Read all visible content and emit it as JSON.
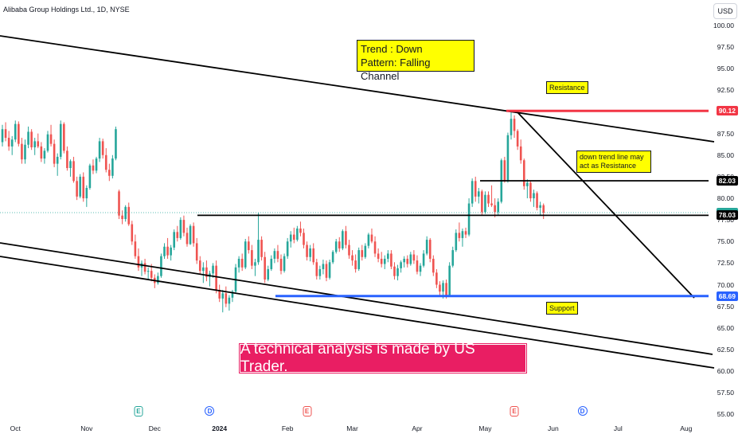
{
  "header": {
    "symbol_title": "Alibaba Group Holdings Ltd., 1D, NYSE",
    "currency": "USD"
  },
  "annotations": {
    "trend_line1": "Trend :  Down",
    "trend_line2": "Pattern: Falling Channel",
    "resistance": "Resistance",
    "support": "Support",
    "downtrend_note": "down trend line may act as Resistance",
    "banner": "A  technical analysis is made by US Trader."
  },
  "colors": {
    "up": "#26a69a",
    "down": "#ef5350",
    "resistance_line": "#f23645",
    "support_line": "#2962ff",
    "banner": "#e91e63",
    "note_bg": "#ffff00"
  },
  "chart_data": {
    "type": "candlestick",
    "y_axis": {
      "ticks": [
        "100.00",
        "97.50",
        "95.00",
        "92.50",
        "90.00",
        "87.50",
        "85.00",
        "82.50",
        "80.00",
        "77.50",
        "75.00",
        "72.50",
        "70.00",
        "67.50",
        "65.00",
        "62.50",
        "60.00",
        "57.50",
        "55.00"
      ],
      "range": [
        55,
        100
      ]
    },
    "x_axis": {
      "ticks": [
        {
          "label": "Oct",
          "bold": false,
          "index": 4
        },
        {
          "label": "Nov",
          "bold": false,
          "index": 26
        },
        {
          "label": "Dec",
          "bold": false,
          "index": 47
        },
        {
          "label": "2024",
          "bold": true,
          "index": 67
        },
        {
          "label": "Feb",
          "bold": false,
          "index": 88
        },
        {
          "label": "Mar",
          "bold": false,
          "index": 108
        },
        {
          "label": "Apr",
          "bold": false,
          "index": 128
        },
        {
          "label": "May",
          "bold": false,
          "index": 149
        },
        {
          "label": "Jun",
          "bold": false,
          "index": 170
        },
        {
          "label": "Jul",
          "bold": false,
          "index": 190
        },
        {
          "label": "Aug",
          "bold": false,
          "index": 211
        }
      ]
    },
    "price_labels": [
      {
        "value": 90.12,
        "text": "90.12",
        "color": "#f23645"
      },
      {
        "value": 82.03,
        "text": "82.03",
        "color": "#000000"
      },
      {
        "value": 78.34,
        "text": "78.34",
        "color": "#26a69a"
      },
      {
        "value": 78.03,
        "text": "78.03",
        "color": "#000000"
      },
      {
        "value": 68.69,
        "text": "68.69",
        "color": "#2962ff"
      }
    ],
    "levels": {
      "resistance": 90.12,
      "horizontal_1": 82.03,
      "horizontal_2": 78.03,
      "support": 68.69,
      "last": 78.34
    },
    "events": [
      {
        "type": "E",
        "index": 42,
        "color": "up"
      },
      {
        "type": "D",
        "index": 64,
        "color": "blue"
      },
      {
        "type": "E",
        "index": 94,
        "color": "down"
      },
      {
        "type": "E",
        "index": 158,
        "color": "down"
      },
      {
        "type": "D",
        "index": 179,
        "color": "blue"
      }
    ],
    "candles": [
      [
        86.5,
        88.5,
        86.0,
        88.0
      ],
      [
        88.0,
        88.8,
        86.6,
        87.0
      ],
      [
        87.0,
        87.8,
        85.5,
        86.0
      ],
      [
        86.0,
        87.2,
        85.0,
        86.8
      ],
      [
        86.8,
        89.0,
        86.5,
        88.6
      ],
      [
        88.6,
        88.9,
        86.0,
        86.3
      ],
      [
        86.3,
        87.0,
        84.0,
        84.5
      ],
      [
        84.5,
        86.8,
        84.0,
        86.2
      ],
      [
        86.2,
        88.3,
        85.8,
        87.7
      ],
      [
        87.7,
        88.0,
        85.6,
        85.9
      ],
      [
        85.9,
        87.0,
        85.0,
        86.6
      ],
      [
        86.6,
        87.5,
        85.8,
        86.0
      ],
      [
        86.0,
        86.5,
        84.2,
        84.6
      ],
      [
        84.6,
        85.8,
        84.0,
        85.5
      ],
      [
        85.5,
        87.8,
        85.3,
        87.4
      ],
      [
        87.4,
        88.5,
        86.0,
        86.3
      ],
      [
        86.3,
        86.8,
        83.6,
        84.0
      ],
      [
        84.0,
        85.2,
        82.6,
        84.8
      ],
      [
        84.8,
        89.0,
        84.5,
        88.6
      ],
      [
        88.6,
        88.8,
        85.2,
        85.5
      ],
      [
        85.5,
        86.0,
        83.2,
        83.5
      ],
      [
        83.5,
        84.5,
        82.5,
        84.3
      ],
      [
        84.3,
        84.8,
        81.8,
        82.0
      ],
      [
        82.0,
        82.5,
        79.8,
        80.2
      ],
      [
        80.2,
        82.8,
        80.0,
        82.5
      ],
      [
        82.5,
        83.0,
        79.6,
        80.0
      ],
      [
        80.0,
        81.5,
        79.0,
        81.2
      ],
      [
        81.2,
        84.0,
        81.0,
        83.8
      ],
      [
        83.8,
        84.5,
        82.8,
        83.2
      ],
      [
        83.2,
        84.8,
        82.9,
        84.6
      ],
      [
        84.6,
        87.0,
        84.2,
        86.6
      ],
      [
        86.6,
        86.9,
        84.6,
        85.0
      ],
      [
        85.0,
        85.8,
        83.0,
        83.3
      ],
      [
        83.3,
        84.0,
        82.0,
        82.6
      ],
      [
        82.6,
        85.0,
        82.3,
        84.6
      ],
      [
        84.6,
        88.3,
        84.4,
        88.0
      ],
      [
        80.8,
        81.0,
        77.6,
        78.0
      ],
      [
        78.0,
        78.6,
        77.0,
        77.6
      ],
      [
        77.6,
        79.2,
        77.3,
        79.0
      ],
      [
        79.0,
        79.5,
        76.8,
        77.0
      ],
      [
        77.0,
        77.4,
        74.6,
        75.0
      ],
      [
        75.0,
        75.8,
        73.0,
        73.3
      ],
      [
        73.3,
        74.2,
        71.6,
        72.0
      ],
      [
        72.0,
        72.8,
        71.0,
        72.5
      ],
      [
        72.5,
        73.0,
        71.2,
        71.5
      ],
      [
        71.5,
        72.0,
        70.6,
        71.6
      ],
      [
        71.6,
        72.4,
        70.4,
        70.8
      ],
      [
        70.8,
        71.2,
        69.6,
        70.2
      ],
      [
        70.2,
        71.4,
        70.0,
        71.0
      ],
      [
        71.0,
        73.6,
        70.8,
        73.3
      ],
      [
        73.3,
        74.8,
        73.0,
        74.4
      ],
      [
        74.4,
        75.4,
        73.0,
        73.4
      ],
      [
        73.4,
        74.6,
        72.8,
        74.3
      ],
      [
        74.3,
        76.4,
        74.0,
        76.1
      ],
      [
        76.1,
        76.8,
        75.0,
        75.4
      ],
      [
        75.4,
        77.8,
        75.2,
        77.5
      ],
      [
        77.5,
        78.0,
        75.6,
        76.0
      ],
      [
        76.0,
        76.6,
        74.4,
        74.7
      ],
      [
        74.7,
        77.0,
        74.6,
        76.8
      ],
      [
        76.8,
        77.2,
        74.4,
        74.8
      ],
      [
        74.8,
        75.4,
        72.4,
        72.8
      ],
      [
        72.8,
        73.3,
        71.2,
        71.6
      ],
      [
        71.6,
        72.6,
        70.2,
        72.0
      ],
      [
        72.0,
        72.8,
        70.4,
        70.9
      ],
      [
        70.9,
        71.6,
        69.8,
        71.3
      ],
      [
        71.3,
        72.5,
        70.8,
        72.2
      ],
      [
        72.2,
        72.8,
        69.0,
        69.4
      ],
      [
        69.4,
        70.0,
        68.0,
        68.4
      ],
      [
        68.4,
        69.4,
        66.8,
        69.0
      ],
      [
        69.0,
        69.8,
        67.4,
        67.8
      ],
      [
        67.8,
        68.8,
        67.0,
        68.5
      ],
      [
        68.5,
        69.4,
        68.0,
        69.2
      ],
      [
        69.2,
        72.4,
        69.0,
        72.0
      ],
      [
        72.0,
        73.3,
        71.4,
        73.0
      ],
      [
        73.0,
        73.6,
        71.6,
        72.0
      ],
      [
        72.0,
        75.3,
        71.8,
        75.0
      ],
      [
        75.0,
        75.6,
        73.6,
        74.0
      ],
      [
        74.0,
        74.6,
        71.8,
        72.2
      ],
      [
        72.2,
        73.0,
        71.0,
        72.6
      ],
      [
        72.6,
        78.3,
        72.3,
        75.2
      ],
      [
        75.2,
        75.6,
        72.8,
        73.2
      ],
      [
        73.2,
        73.8,
        70.2,
        70.6
      ],
      [
        70.6,
        72.2,
        70.4,
        71.8
      ],
      [
        71.8,
        73.4,
        71.6,
        73.0
      ],
      [
        73.0,
        74.2,
        72.5,
        73.9
      ],
      [
        73.9,
        74.6,
        72.6,
        73.0
      ],
      [
        73.0,
        73.5,
        71.2,
        71.6
      ],
      [
        71.6,
        73.6,
        71.4,
        73.3
      ],
      [
        73.3,
        75.4,
        73.0,
        75.0
      ],
      [
        75.0,
        76.2,
        74.3,
        75.8
      ],
      [
        75.8,
        76.6,
        74.8,
        75.2
      ],
      [
        75.2,
        76.8,
        75.0,
        76.5
      ],
      [
        76.5,
        77.3,
        75.6,
        76.0
      ],
      [
        76.0,
        76.5,
        74.2,
        74.6
      ],
      [
        74.6,
        75.0,
        72.8,
        73.2
      ],
      [
        73.2,
        74.6,
        72.7,
        74.2
      ],
      [
        74.2,
        74.8,
        72.3,
        72.6
      ],
      [
        72.6,
        73.0,
        70.6,
        71.0
      ],
      [
        71.0,
        72.2,
        70.6,
        71.8
      ],
      [
        71.8,
        72.9,
        71.2,
        72.4
      ],
      [
        72.4,
        72.8,
        70.4,
        70.8
      ],
      [
        70.8,
        72.9,
        70.6,
        72.6
      ],
      [
        72.6,
        74.0,
        72.4,
        73.8
      ],
      [
        73.8,
        75.3,
        73.6,
        75.0
      ],
      [
        75.0,
        75.5,
        73.8,
        74.2
      ],
      [
        74.2,
        76.4,
        74.0,
        76.2
      ],
      [
        76.2,
        76.8,
        74.2,
        74.6
      ],
      [
        74.6,
        75.2,
        73.0,
        73.4
      ],
      [
        73.4,
        74.0,
        72.2,
        72.8
      ],
      [
        72.8,
        73.5,
        71.4,
        71.8
      ],
      [
        71.8,
        74.3,
        71.6,
        74.0
      ],
      [
        74.0,
        74.6,
        72.8,
        73.2
      ],
      [
        73.2,
        74.8,
        73.0,
        74.5
      ],
      [
        74.5,
        76.0,
        74.2,
        75.8
      ],
      [
        75.8,
        76.5,
        74.8,
        75.0
      ],
      [
        75.0,
        75.6,
        73.2,
        73.6
      ],
      [
        73.6,
        74.2,
        72.6,
        73.0
      ],
      [
        73.0,
        73.8,
        72.0,
        72.4
      ],
      [
        72.4,
        73.4,
        71.8,
        73.0
      ],
      [
        73.0,
        74.0,
        72.6,
        73.6
      ],
      [
        73.6,
        74.0,
        71.8,
        72.1
      ],
      [
        72.1,
        72.6,
        70.6,
        71.0
      ],
      [
        71.0,
        72.3,
        70.5,
        71.9
      ],
      [
        71.9,
        72.8,
        71.4,
        72.6
      ],
      [
        72.6,
        73.3,
        72.0,
        73.0
      ],
      [
        73.0,
        73.4,
        72.0,
        72.4
      ],
      [
        72.4,
        73.8,
        72.2,
        73.5
      ],
      [
        73.5,
        74.0,
        72.4,
        72.8
      ],
      [
        72.8,
        73.4,
        71.2,
        71.5
      ],
      [
        71.5,
        72.5,
        71.0,
        72.2
      ],
      [
        72.2,
        74.0,
        72.0,
        73.6
      ],
      [
        73.6,
        75.6,
        73.4,
        75.2
      ],
      [
        75.2,
        75.4,
        72.6,
        73.0
      ],
      [
        73.0,
        73.4,
        71.0,
        71.4
      ],
      [
        71.4,
        71.8,
        69.6,
        70.0
      ],
      [
        70.0,
        70.4,
        68.6,
        69.2
      ],
      [
        69.2,
        70.5,
        68.4,
        70.2
      ],
      [
        70.2,
        70.6,
        68.4,
        68.8
      ],
      [
        68.8,
        72.6,
        68.6,
        72.2
      ],
      [
        72.2,
        74.4,
        72.0,
        74.0
      ],
      [
        74.0,
        76.4,
        73.8,
        76.0
      ],
      [
        76.0,
        77.2,
        75.0,
        75.4
      ],
      [
        75.4,
        76.5,
        74.4,
        76.2
      ],
      [
        76.2,
        76.6,
        75.4,
        75.8
      ],
      [
        75.8,
        80.0,
        75.6,
        79.4
      ],
      [
        79.4,
        82.3,
        79.0,
        82.0
      ],
      [
        82.0,
        82.5,
        79.6,
        80.2
      ],
      [
        80.2,
        81.2,
        79.4,
        80.8
      ],
      [
        80.8,
        81.0,
        78.0,
        78.4
      ],
      [
        78.4,
        80.8,
        78.2,
        80.4
      ],
      [
        80.4,
        80.8,
        79.0,
        79.4
      ],
      [
        79.4,
        81.5,
        79.0,
        79.2
      ],
      [
        79.2,
        80.0,
        77.8,
        78.4
      ],
      [
        78.4,
        80.0,
        78.0,
        79.6
      ],
      [
        79.6,
        84.6,
        79.4,
        84.4
      ],
      [
        84.4,
        84.8,
        81.8,
        82.0
      ],
      [
        82.0,
        87.6,
        81.8,
        87.3
      ],
      [
        87.3,
        90.2,
        86.8,
        89.2
      ],
      [
        89.2,
        89.6,
        87.0,
        87.8
      ],
      [
        87.8,
        88.0,
        85.6,
        86.0
      ],
      [
        86.0,
        86.8,
        84.0,
        84.4
      ],
      [
        84.4,
        84.6,
        81.0,
        81.4
      ],
      [
        81.4,
        82.2,
        80.0,
        81.8
      ],
      [
        81.8,
        82.0,
        79.6,
        80.0
      ],
      [
        80.0,
        81.0,
        79.0,
        80.6
      ],
      [
        80.6,
        80.8,
        78.6,
        78.9
      ],
      [
        78.9,
        79.6,
        78.0,
        79.2
      ],
      [
        79.2,
        79.4,
        77.6,
        78.34
      ]
    ]
  }
}
